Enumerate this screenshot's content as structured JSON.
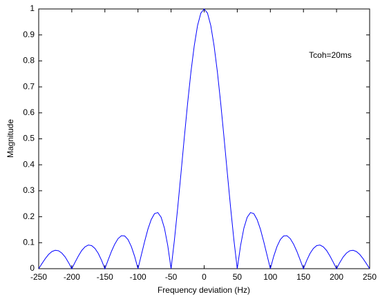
{
  "chart_data": {
    "type": "line",
    "xlabel": "Frequency deviation (Hz)",
    "ylabel": "Magnitude",
    "annotation": "Tcoh=20ms",
    "x": [
      -250,
      -245,
      -240,
      -235,
      -230,
      -225,
      -220,
      -215,
      -210,
      -205,
      -200,
      -195,
      -190,
      -185,
      -180,
      -175,
      -170,
      -165,
      -160,
      -155,
      -150,
      -145,
      -140,
      -135,
      -130,
      -125,
      -120,
      -115,
      -110,
      -105,
      -100,
      -95,
      -90,
      -85,
      -80,
      -75,
      -70,
      -65,
      -60,
      -55,
      -50,
      -45,
      -40,
      -35,
      -30,
      -25,
      -20,
      -15,
      -10,
      -5,
      0,
      5,
      10,
      15,
      20,
      25,
      30,
      35,
      40,
      45,
      50,
      55,
      60,
      65,
      70,
      75,
      80,
      85,
      90,
      95,
      100,
      105,
      110,
      115,
      120,
      125,
      130,
      135,
      140,
      145,
      150,
      155,
      160,
      165,
      170,
      175,
      180,
      185,
      190,
      195,
      200,
      205,
      210,
      215,
      220,
      225,
      230,
      235,
      240,
      245,
      250
    ],
    "series": [
      {
        "color": "#0000ff",
        "values": [
          0,
          0.02,
          0.039,
          0.055,
          0.066,
          0.071,
          0.069,
          0.06,
          0.045,
          0.024,
          0,
          0.025,
          0.049,
          0.07,
          0.084,
          0.091,
          0.089,
          0.078,
          0.059,
          0.032,
          0,
          0.034,
          0.067,
          0.095,
          0.116,
          0.127,
          0.126,
          0.112,
          0.085,
          0.047,
          0,
          0.052,
          0.104,
          0.152,
          0.189,
          0.212,
          0.216,
          0.198,
          0.156,
          0.089,
          0,
          0.109,
          0.234,
          0.368,
          0.505,
          0.637,
          0.757,
          0.858,
          0.936,
          0.984,
          1,
          0.984,
          0.936,
          0.858,
          0.757,
          0.637,
          0.505,
          0.368,
          0.234,
          0.109,
          0,
          0.089,
          0.156,
          0.198,
          0.216,
          0.212,
          0.189,
          0.152,
          0.104,
          0.052,
          0,
          0.047,
          0.085,
          0.112,
          0.126,
          0.127,
          0.116,
          0.095,
          0.067,
          0.034,
          0,
          0.032,
          0.059,
          0.078,
          0.089,
          0.091,
          0.084,
          0.07,
          0.049,
          0.025,
          0,
          0.024,
          0.045,
          0.06,
          0.069,
          0.071,
          0.066,
          0.055,
          0.039,
          0.02,
          0
        ]
      }
    ],
    "xlim": [
      -250,
      250
    ],
    "xticks": [
      -250,
      -200,
      -150,
      -100,
      -50,
      0,
      50,
      100,
      150,
      200,
      250
    ],
    "ylim": [
      0,
      1
    ],
    "yticks": [
      0,
      0.1,
      0.2,
      0.3,
      0.4,
      0.5,
      0.6,
      0.7,
      0.8,
      0.9,
      1
    ]
  }
}
